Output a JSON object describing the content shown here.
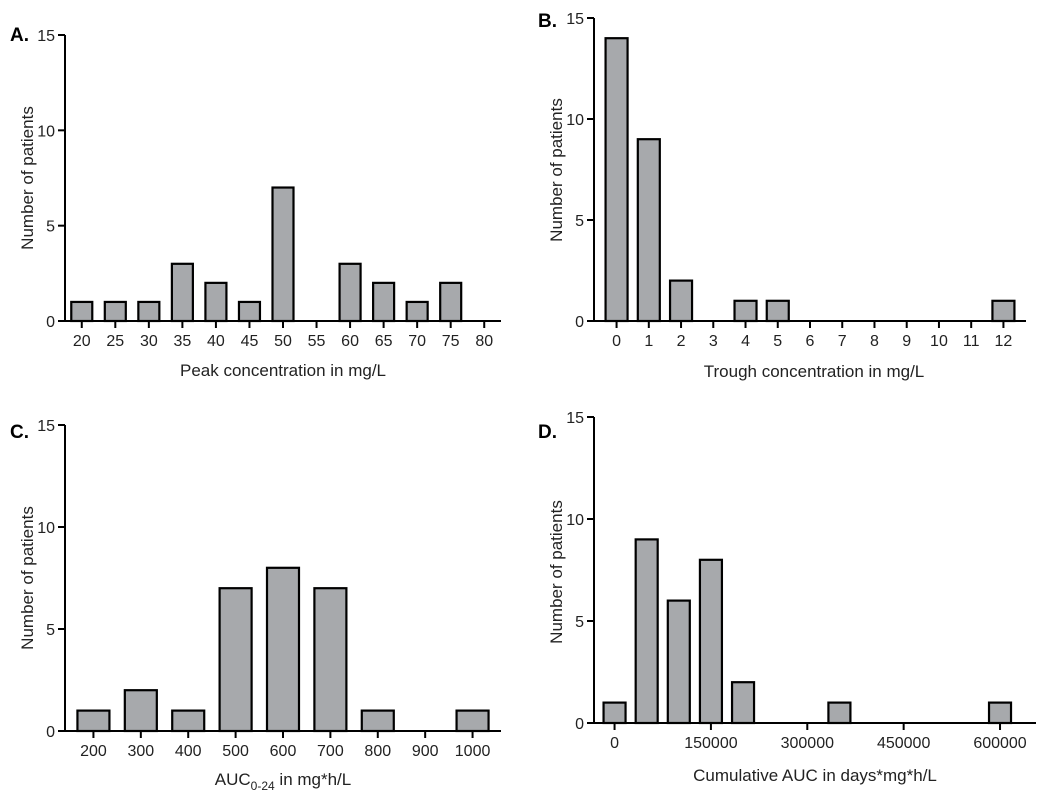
{
  "chart_data": [
    {
      "panel_label": "A.",
      "type": "bar",
      "x": [
        20,
        25,
        30,
        35,
        40,
        45,
        50,
        55,
        60,
        65,
        70,
        75,
        80
      ],
      "categories": [
        "20",
        "25",
        "30",
        "35",
        "40",
        "45",
        "50",
        "55",
        "60",
        "65",
        "70",
        "75",
        "80"
      ],
      "values": [
        1,
        1,
        1,
        3,
        2,
        1,
        7,
        0,
        3,
        2,
        1,
        2,
        0
      ],
      "xlabel": "Peak concentration in mg/L",
      "ylabel": "Number of patients",
      "ylim": [
        0,
        15
      ],
      "yticks": [
        0,
        5,
        10,
        15
      ],
      "grid": false,
      "bar_color": "#a7a9ac"
    },
    {
      "panel_label": "B.",
      "type": "bar",
      "x": [
        0,
        1,
        2,
        3,
        4,
        5,
        6,
        7,
        8,
        9,
        10,
        11,
        12
      ],
      "categories": [
        "0",
        "1",
        "2",
        "3",
        "4",
        "5",
        "6",
        "7",
        "8",
        "9",
        "10",
        "11",
        "12"
      ],
      "values": [
        14,
        9,
        2,
        0,
        1,
        1,
        0,
        0,
        0,
        0,
        0,
        0,
        1
      ],
      "xlabel": "Trough concentration in mg/L",
      "ylabel": "Number of patients",
      "ylim": [
        0,
        15
      ],
      "yticks": [
        0,
        5,
        10,
        15
      ],
      "grid": false,
      "bar_color": "#a7a9ac"
    },
    {
      "panel_label": "C.",
      "type": "bar",
      "x": [
        200,
        300,
        400,
        500,
        600,
        700,
        800,
        900,
        1000
      ],
      "categories": [
        "200",
        "300",
        "400",
        "500",
        "600",
        "700",
        "800",
        "900",
        "1000"
      ],
      "values": [
        1,
        2,
        1,
        7,
        8,
        7,
        1,
        0,
        1
      ],
      "xlabel_main": "AUC",
      "xlabel_sub": "0-24",
      "xlabel_rest": " in mg*h/L",
      "ylabel": "Number of patients",
      "ylim": [
        0,
        15
      ],
      "yticks": [
        0,
        5,
        10,
        15
      ],
      "grid": false,
      "bar_color": "#a7a9ac"
    },
    {
      "panel_label": "D.",
      "type": "bar",
      "x": [
        0,
        50000,
        100000,
        150000,
        200000,
        250000,
        300000,
        350000,
        400000,
        450000,
        500000,
        550000,
        600000
      ],
      "values": [
        1,
        9,
        6,
        8,
        2,
        0,
        0,
        1,
        0,
        0,
        0,
        0,
        1
      ],
      "xticks": [
        0,
        150000,
        300000,
        450000,
        600000
      ],
      "xtick_labels": [
        "0",
        "150000",
        "300000",
        "450000",
        "600000"
      ],
      "xlabel": "Cumulative AUC in days*mg*h/L",
      "ylabel": "Number of patients",
      "ylim": [
        0,
        15
      ],
      "yticks": [
        0,
        5,
        10,
        15
      ],
      "grid": false,
      "bar_color": "#a7a9ac"
    }
  ]
}
